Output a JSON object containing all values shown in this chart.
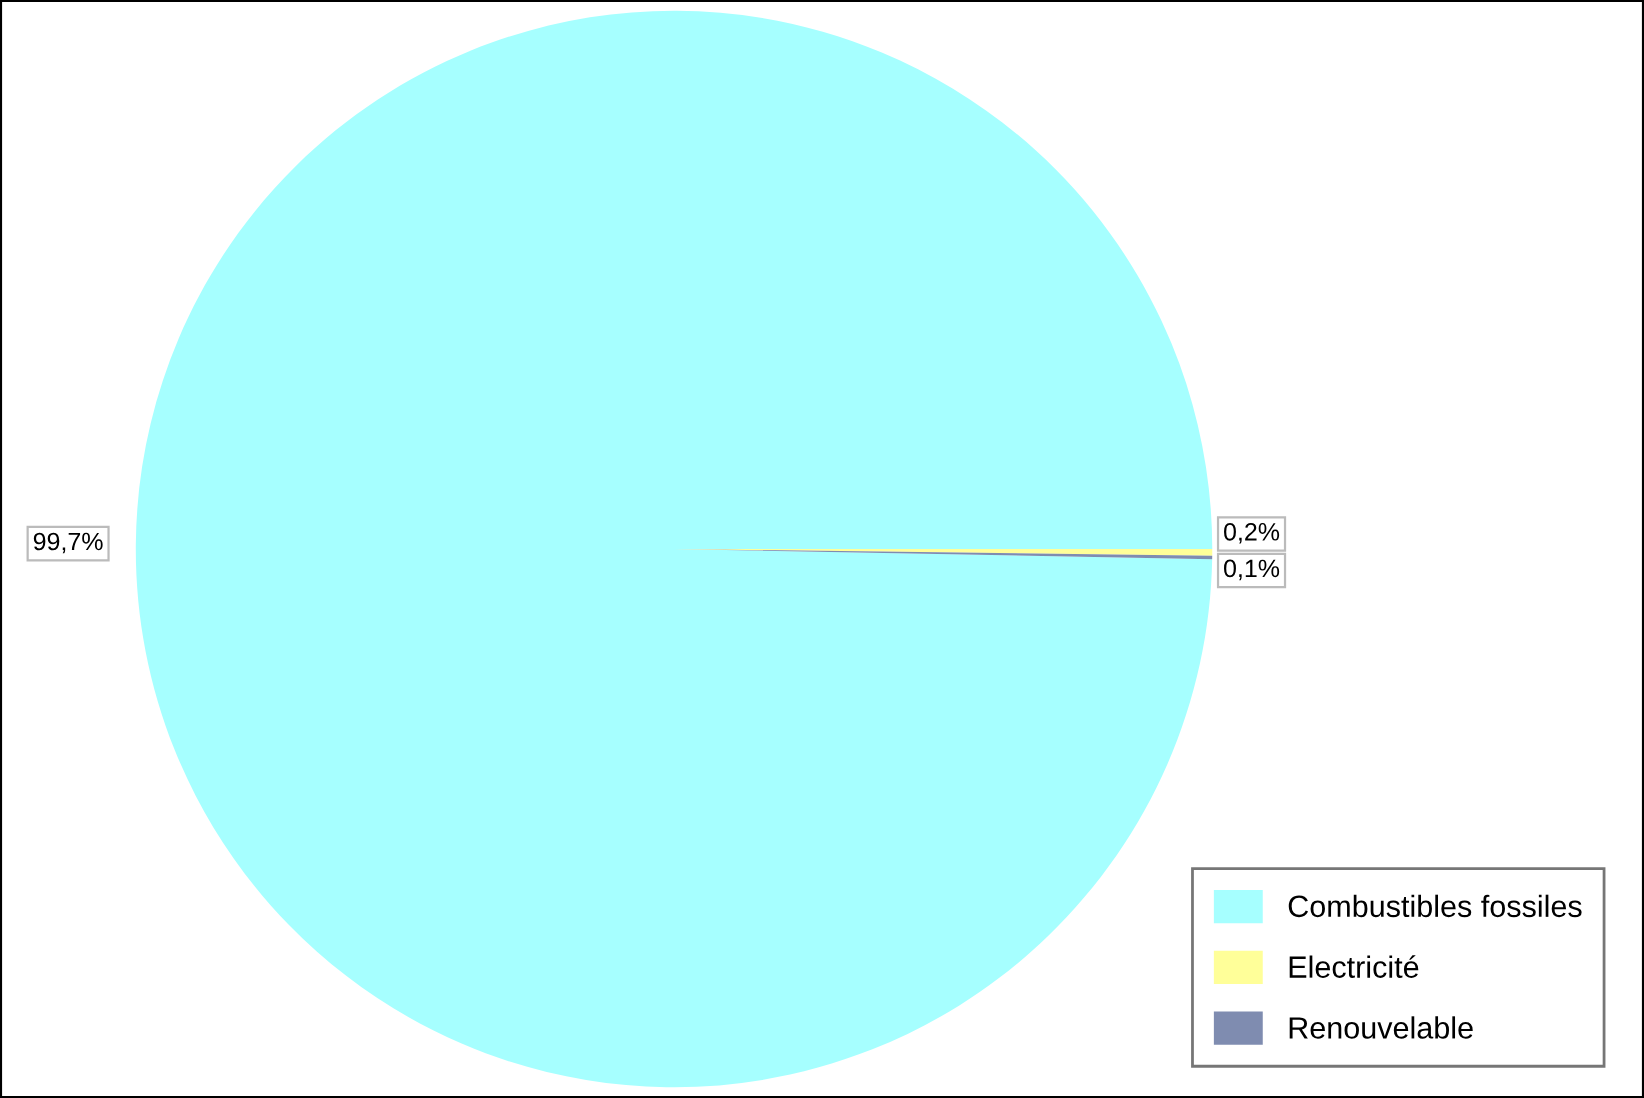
{
  "chart_data": {
    "type": "pie",
    "categories": [
      "Combustibles fossiles",
      "Electricité",
      "Renouvelable"
    ],
    "values": [
      99.7,
      0.2,
      0.1
    ],
    "colors": [
      "#a6ffff",
      "#ffff99",
      "#7f8cb0"
    ],
    "value_labels": [
      "99,7%",
      "0,2%",
      "0,1%"
    ],
    "legend": "bottom right"
  }
}
